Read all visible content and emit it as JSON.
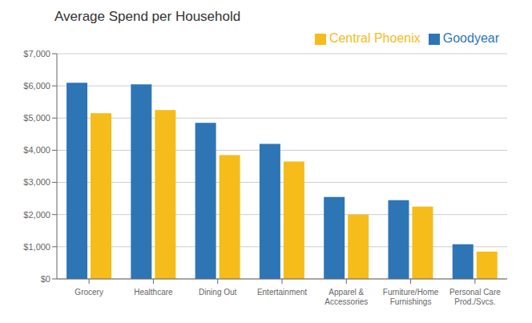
{
  "chart_data": {
    "type": "bar",
    "title": "Average Spend per Household",
    "categories": [
      "Grocery",
      "Healthcare",
      "Dining Out",
      "Entertainment",
      "Apparel &\nAccessories",
      "Furniture/Home\nFurnishings",
      "Personal Care\nProd./Svcs."
    ],
    "series": [
      {
        "name": "Goodyear",
        "color": "#2e75b6",
        "values": [
          6100,
          6050,
          4850,
          4200,
          2550,
          2450,
          1075
        ]
      },
      {
        "name": "Central Phoenix",
        "color": "#f5bc1a",
        "values": [
          5150,
          5250,
          3850,
          3650,
          2000,
          2250,
          850
        ]
      }
    ],
    "ylim": [
      0,
      7000
    ],
    "yticks": [
      {
        "value": 0,
        "label": "$0"
      },
      {
        "value": 1000,
        "label": "$1,000"
      },
      {
        "value": 2000,
        "label": "$2,000"
      },
      {
        "value": 3000,
        "label": "$3,000"
      },
      {
        "value": 4000,
        "label": "$4,000"
      },
      {
        "value": 5000,
        "label": "$5,000"
      },
      {
        "value": 6000,
        "label": "$6,000"
      },
      {
        "value": 7000,
        "label": "$7,000"
      }
    ],
    "grid": true,
    "legend": "upper right"
  }
}
